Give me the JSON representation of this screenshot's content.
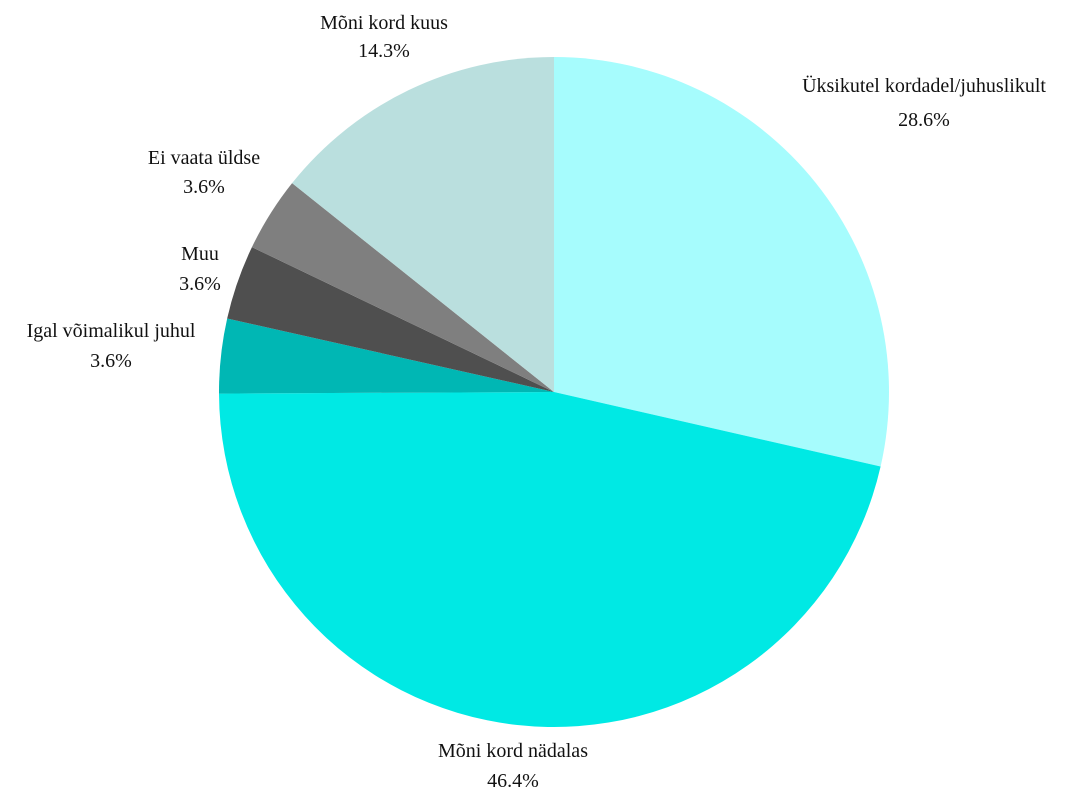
{
  "chart_data": {
    "type": "pie",
    "title": "",
    "start_angle_deg": 0,
    "direction": "clockwise",
    "slices": [
      {
        "label": "Üksikutel kordadel/juhuslikult",
        "value": 28.6,
        "value_label": "28.6%",
        "color": "#A6FCFD"
      },
      {
        "label": "Mõni kord nädalas",
        "value": 46.4,
        "value_label": "46.4%",
        "color": "#00E9E4"
      },
      {
        "label": "Igal võimalikul juhul",
        "value": 3.6,
        "value_label": "3.6%",
        "color": "#00B7B4"
      },
      {
        "label": "Muu",
        "value": 3.6,
        "value_label": "3.6%",
        "color": "#4F4F4F"
      },
      {
        "label": "Ei vaata üldse",
        "value": 3.6,
        "value_label": "3.6%",
        "color": "#7F7F7F"
      },
      {
        "label": "Mõni kord kuus",
        "value": 14.3,
        "value_label": "14.3%",
        "color": "#BADFDE"
      }
    ]
  }
}
